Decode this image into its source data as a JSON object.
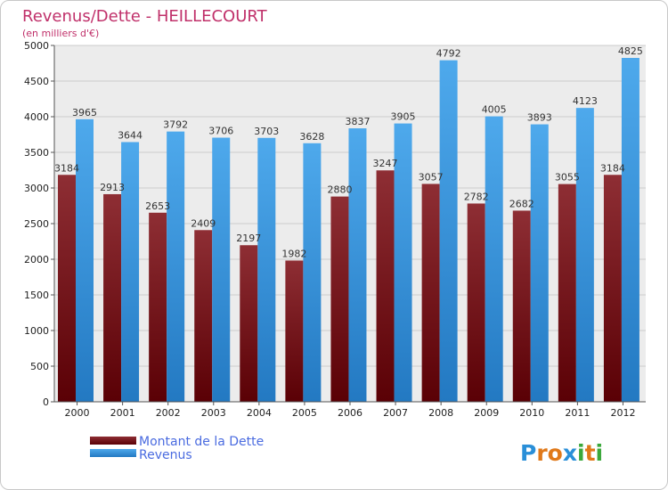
{
  "chart_data": {
    "type": "bar",
    "title": "Revenus/Dette - HEILLECOURT",
    "subtitle": "(en milliers d'€)",
    "xlabel": "",
    "ylabel": "",
    "ylim": [
      0,
      5000
    ],
    "yticks": [
      "0",
      "500",
      "1000",
      "1500",
      "2000",
      "2500",
      "3000",
      "3500",
      "4000",
      "4500",
      "5000"
    ],
    "categories": [
      "2000",
      "2001",
      "2002",
      "2003",
      "2004",
      "2005",
      "2006",
      "2007",
      "2008",
      "2009",
      "2010",
      "2011",
      "2012"
    ],
    "series": [
      {
        "name": "Montant de la Dette",
        "color": "#7a1a20",
        "values": [
          3184,
          2913,
          2653,
          2409,
          2197,
          1982,
          2880,
          3247,
          3057,
          2782,
          2682,
          3055,
          3184
        ]
      },
      {
        "name": "Revenus",
        "color": "#3d9ae0",
        "values": [
          3965,
          3644,
          3792,
          3706,
          3703,
          3628,
          3837,
          3905,
          4792,
          4005,
          3893,
          4123,
          4825
        ]
      }
    ],
    "grid": true,
    "legend_position": "bottom-left"
  },
  "brand": {
    "letters": [
      "P",
      "r",
      "o",
      "x",
      "i",
      "t",
      "i"
    ],
    "colors": [
      "#2a8fd8",
      "#e0791a",
      "#e0791a",
      "#2a8fd8",
      "#3aa83a",
      "#e0791a",
      "#3aa83a"
    ]
  },
  "colors": {
    "grid": "#cccccc",
    "plot_bg": "#ececec",
    "axis": "#555555"
  }
}
